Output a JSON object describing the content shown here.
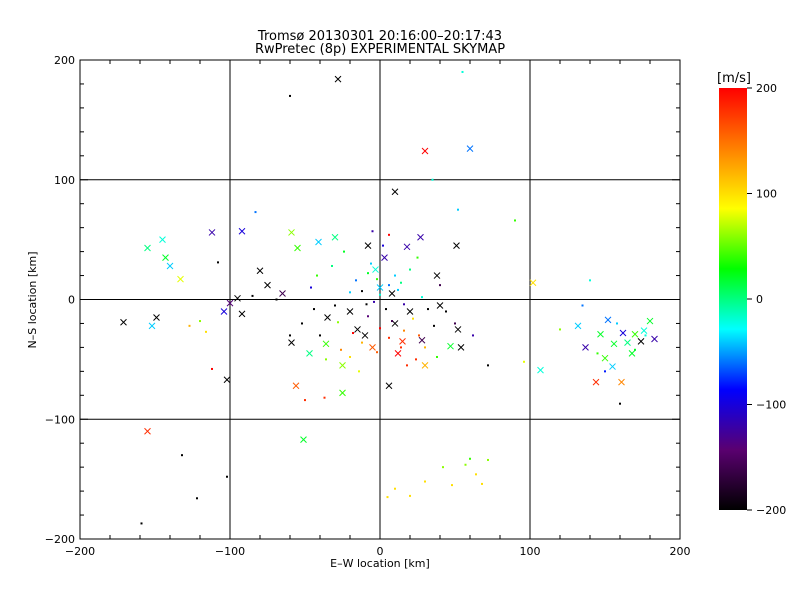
{
  "chart_data": {
    "type": "scatter",
    "title": "Tromsø 20130301 20:16:00–20:17:43",
    "subtitle": "RwPretec (8p) EXPERIMENTAL SKYMAP",
    "xlabel": "E–W location [km]",
    "ylabel": "N–S location [km]",
    "xlim": [
      -200,
      200
    ],
    "ylim": [
      -200,
      200
    ],
    "xticks": [
      "−200",
      "−100",
      "0",
      "100",
      "200"
    ],
    "yticks": [
      "200",
      "100",
      "0",
      "−100",
      "−200"
    ],
    "grid": true,
    "colorbar": {
      "label": "[m/s]",
      "range": [
        -200,
        200
      ],
      "ticks": [
        "200",
        "100",
        "0",
        "−100",
        "−200"
      ],
      "colormap": [
        "#000000",
        "#5a0070",
        "#0000ff",
        "#00ffff",
        "#00ff00",
        "#ffff00",
        "#ff8000",
        "#ff0000"
      ]
    },
    "series": [
      {
        "marker": "x",
        "points": [
          [
            -28,
            184,
            -200
          ],
          [
            30,
            124,
            200
          ],
          [
            60,
            126,
            -60
          ],
          [
            10,
            90,
            -200
          ],
          [
            -30,
            52,
            0
          ],
          [
            -59,
            56,
            60
          ],
          [
            -55,
            43,
            40
          ],
          [
            -41,
            48,
            -40
          ],
          [
            -92,
            57,
            -100
          ],
          [
            -112,
            56,
            -120
          ],
          [
            -155,
            43,
            0
          ],
          [
            -145,
            50,
            -20
          ],
          [
            -143,
            35,
            20
          ],
          [
            -140,
            28,
            -40
          ],
          [
            -133,
            17,
            80
          ],
          [
            -80,
            24,
            -200
          ],
          [
            -75,
            12,
            -200
          ],
          [
            -65,
            5,
            -160
          ],
          [
            -95,
            1,
            -200
          ],
          [
            -100,
            -3,
            -140
          ],
          [
            -92,
            -12,
            -200
          ],
          [
            -104,
            -10,
            -100
          ],
          [
            -171,
            -19,
            -200
          ],
          [
            -149,
            -15,
            -200
          ],
          [
            -152,
            -22,
            -40
          ],
          [
            -59,
            -36,
            -200
          ],
          [
            -47,
            -45,
            0
          ],
          [
            -36,
            -37,
            40
          ],
          [
            -56,
            -72,
            160
          ],
          [
            -51,
            -117,
            20
          ],
          [
            -155,
            -110,
            180
          ],
          [
            -102,
            -67,
            -200
          ],
          [
            -25,
            -78,
            40
          ],
          [
            6,
            -72,
            -200
          ],
          [
            28,
            -34,
            -160
          ],
          [
            52,
            -25,
            -200
          ],
          [
            54,
            -40,
            -200
          ],
          [
            47,
            -39,
            20
          ],
          [
            38,
            20,
            -200
          ],
          [
            51,
            45,
            -200
          ],
          [
            27,
            52,
            -120
          ],
          [
            18,
            44,
            -120
          ],
          [
            102,
            14,
            100
          ],
          [
            107,
            -59,
            -20
          ],
          [
            132,
            -22,
            -40
          ],
          [
            137,
            -40,
            -120
          ],
          [
            144,
            -69,
            180
          ],
          [
            147,
            -29,
            20
          ],
          [
            152,
            -17,
            -60
          ],
          [
            156,
            -37,
            20
          ],
          [
            161,
            -69,
            140
          ],
          [
            165,
            -36,
            0
          ],
          [
            170,
            -29,
            40
          ],
          [
            174,
            -35,
            -200
          ],
          [
            176,
            -26,
            -20
          ],
          [
            180,
            -18,
            20
          ],
          [
            183,
            -33,
            -120
          ],
          [
            155,
            -56,
            -40
          ],
          [
            168,
            -45,
            20
          ],
          [
            162,
            -28,
            -100
          ],
          [
            150,
            -49,
            40
          ],
          [
            -10,
            -30,
            -200
          ],
          [
            10,
            -20,
            -200
          ],
          [
            -20,
            -10,
            -200
          ],
          [
            -5,
            -40,
            160
          ],
          [
            20,
            -10,
            -200
          ],
          [
            0,
            10,
            -40
          ],
          [
            8,
            5,
            -200
          ],
          [
            -15,
            -25,
            -200
          ],
          [
            15,
            -35,
            180
          ],
          [
            -25,
            -55,
            60
          ],
          [
            30,
            -55,
            120
          ],
          [
            -3,
            25,
            -20
          ],
          [
            3,
            35,
            -120
          ],
          [
            -8,
            45,
            -200
          ],
          [
            12,
            -45,
            200
          ],
          [
            -35,
            -15,
            -200
          ],
          [
            40,
            -5,
            -200
          ]
        ]
      },
      {
        "marker": "dot",
        "points": [
          [
            -60,
            170,
            -200
          ],
          [
            55,
            190,
            -20
          ],
          [
            35,
            100,
            -20
          ],
          [
            52,
            75,
            -40
          ],
          [
            -83,
            73,
            -60
          ],
          [
            90,
            66,
            40
          ],
          [
            -108,
            31,
            -200
          ],
          [
            -85,
            3,
            -200
          ],
          [
            -69,
            0,
            -200
          ],
          [
            -127,
            -22,
            120
          ],
          [
            -112,
            -58,
            200
          ],
          [
            -116,
            -27,
            100
          ],
          [
            -120,
            -18,
            60
          ],
          [
            -132,
            -130,
            -200
          ],
          [
            -122,
            -166,
            -200
          ],
          [
            -102,
            -148,
            -200
          ],
          [
            -159,
            -187,
            -200
          ],
          [
            -50,
            -84,
            180
          ],
          [
            -37,
            -82,
            180
          ],
          [
            5,
            -165,
            100
          ],
          [
            10,
            -158,
            100
          ],
          [
            20,
            -164,
            100
          ],
          [
            30,
            -152,
            100
          ],
          [
            42,
            -140,
            60
          ],
          [
            48,
            -155,
            100
          ],
          [
            57,
            -138,
            60
          ],
          [
            64,
            -146,
            100
          ],
          [
            60,
            -133,
            40
          ],
          [
            68,
            -154,
            100
          ],
          [
            72,
            -134,
            60
          ],
          [
            160,
            -87,
            -200
          ],
          [
            72,
            -55,
            -200
          ],
          [
            120,
            -25,
            60
          ],
          [
            96,
            -52,
            80
          ],
          [
            140,
            16,
            -20
          ],
          [
            -5,
            57,
            -120
          ],
          [
            6,
            54,
            200
          ],
          [
            -2,
            17,
            40
          ],
          [
            14,
            14,
            0
          ],
          [
            -9,
            -4,
            -200
          ],
          [
            25,
            35,
            40
          ],
          [
            -32,
            28,
            0
          ],
          [
            -42,
            20,
            40
          ],
          [
            -20,
            6,
            -40
          ],
          [
            4,
            -8,
            -200
          ],
          [
            16,
            -4,
            -120
          ],
          [
            -12,
            7,
            -200
          ],
          [
            -18,
            -28,
            200
          ],
          [
            6,
            -32,
            180
          ],
          [
            -28,
            -19,
            60
          ],
          [
            22,
            -16,
            100
          ],
          [
            36,
            -22,
            -200
          ],
          [
            -2,
            -44,
            160
          ],
          [
            -40,
            -30,
            -200
          ],
          [
            30,
            -40,
            120
          ],
          [
            -14,
            -60,
            80
          ],
          [
            18,
            -55,
            180
          ],
          [
            10,
            20,
            -40
          ],
          [
            -6,
            30,
            -40
          ],
          [
            28,
            2,
            -20
          ],
          [
            -24,
            40,
            20
          ],
          [
            2,
            45,
            -100
          ],
          [
            -44,
            -8,
            -200
          ],
          [
            44,
            -10,
            -200
          ],
          [
            -8,
            -14,
            -140
          ],
          [
            8,
            -18,
            -160
          ],
          [
            -4,
            -2,
            -120
          ],
          [
            12,
            8,
            -40
          ],
          [
            -16,
            16,
            -60
          ],
          [
            20,
            25,
            0
          ],
          [
            -26,
            -42,
            140
          ],
          [
            26,
            -30,
            160
          ],
          [
            0,
            -24,
            200
          ],
          [
            -12,
            -36,
            120
          ],
          [
            14,
            -40,
            180
          ],
          [
            -30,
            -5,
            -200
          ],
          [
            32,
            -8,
            -200
          ],
          [
            0,
            4,
            -20
          ],
          [
            6,
            12,
            -60
          ],
          [
            -8,
            22,
            20
          ],
          [
            16,
            -26,
            140
          ],
          [
            -20,
            -48,
            100
          ],
          [
            24,
            -50,
            180
          ],
          [
            -36,
            -50,
            60
          ],
          [
            38,
            -48,
            40
          ],
          [
            40,
            12,
            -160
          ],
          [
            -46,
            10,
            -100
          ],
          [
            -52,
            -20,
            -200
          ],
          [
            50,
            -20,
            -160
          ],
          [
            -60,
            -30,
            -200
          ],
          [
            62,
            -30,
            -120
          ],
          [
            170,
            -42,
            20
          ],
          [
            150,
            -60,
            -80
          ],
          [
            158,
            -20,
            -40
          ],
          [
            145,
            -45,
            40
          ],
          [
            177,
            -30,
            -20
          ],
          [
            135,
            -5,
            -60
          ]
        ]
      }
    ]
  }
}
